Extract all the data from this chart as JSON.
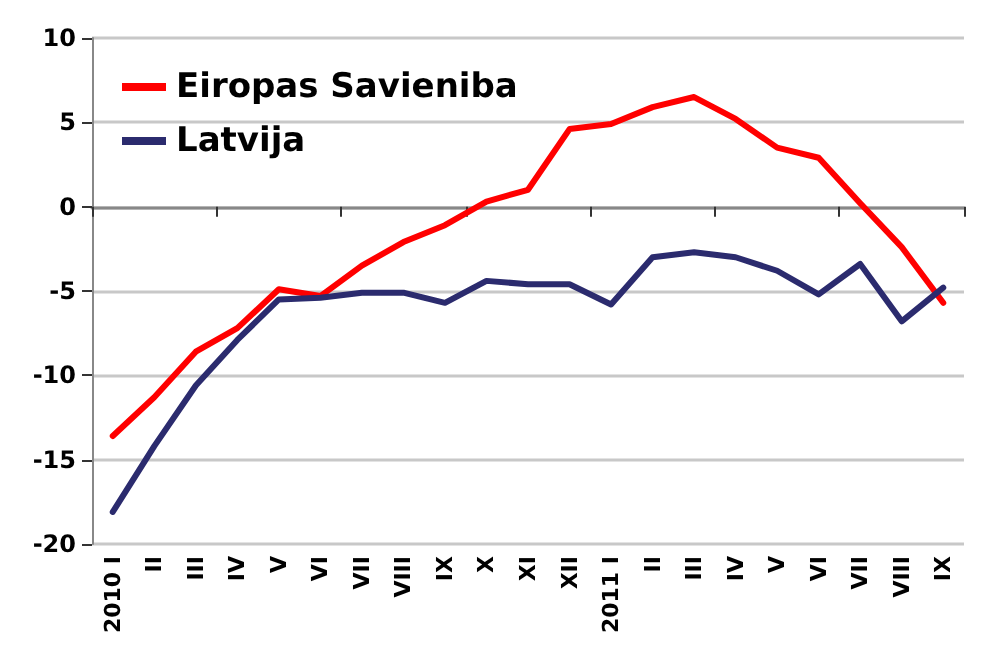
{
  "chart_data": {
    "type": "line",
    "categories": [
      "2010 I",
      "II",
      "III",
      "IV",
      "V",
      "VI",
      "VII",
      "VIII",
      "IX",
      "X",
      "XI",
      "XII",
      "2011 I",
      "II",
      "III",
      "IV",
      "V",
      "VI",
      "VII",
      "VIII",
      "IX"
    ],
    "series": [
      {
        "name": "Eiropas Savieniba",
        "color": "#ff0000",
        "values": [
          -13.6,
          -11.3,
          -8.6,
          -7.2,
          -4.9,
          -5.3,
          -3.5,
          -2.1,
          -1.1,
          0.3,
          1.0,
          4.6,
          4.9,
          5.9,
          6.5,
          5.2,
          3.5,
          2.9,
          0.2,
          -2.4,
          -5.7
        ]
      },
      {
        "name": "Latvija",
        "color": "#2b2b6e",
        "values": [
          -18.1,
          -14.2,
          -10.6,
          -7.9,
          -5.5,
          -5.4,
          -5.1,
          -5.1,
          -5.7,
          -4.4,
          -4.6,
          -4.6,
          -5.8,
          -3.0,
          -2.7,
          -3.0,
          -3.8,
          -5.2,
          -3.4,
          -6.8,
          -4.8
        ]
      }
    ],
    "ylim": [
      -20,
      10
    ],
    "yticks": [
      -20,
      -15,
      -10,
      -5,
      0,
      5,
      10
    ],
    "grid": "y",
    "legend": "top left",
    "marker": "none",
    "line_style": "solid"
  }
}
